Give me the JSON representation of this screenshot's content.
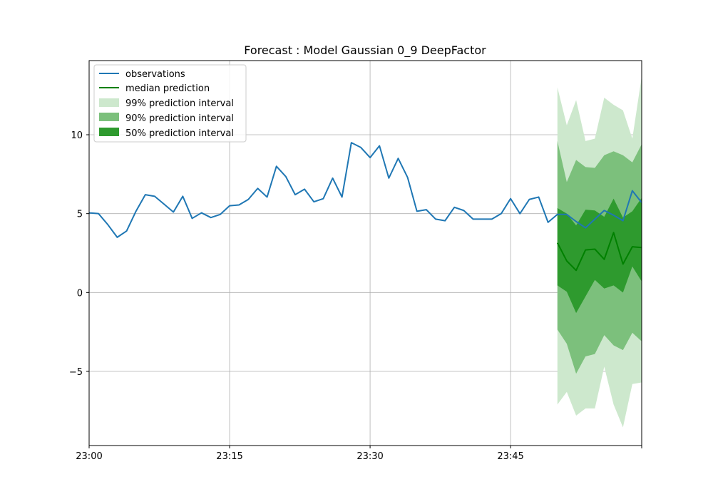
{
  "chart_data": {
    "type": "line",
    "title": "Forecast : Model Gaussian 0_9 DeepFactor",
    "xlabel": "",
    "ylabel": "",
    "x_unit": "minute",
    "x_start": "23:00",
    "x_end": "23:59",
    "xlim": [
      "23:00",
      "23:59"
    ],
    "ylim": [
      -9.7,
      14.7
    ],
    "x_ticks": [
      "23:00",
      "23:15",
      "23:30",
      "23:45",
      ""
    ],
    "y_ticks": [
      {
        "value": -5,
        "label": "−5"
      },
      {
        "value": 0,
        "label": "0"
      },
      {
        "value": 5,
        "label": "5"
      },
      {
        "value": 10,
        "label": "10"
      }
    ],
    "grid": true,
    "legend_position": "upper-left",
    "colors": {
      "observations": "#1f77b4",
      "median": "#008000",
      "band99": "#cde8cd",
      "band90": "#7cc07c",
      "band50": "#2e9a2e"
    },
    "observations": {
      "name": "observations",
      "x": [
        "23:00",
        "23:01",
        "23:02",
        "23:03",
        "23:04",
        "23:05",
        "23:06",
        "23:07",
        "23:08",
        "23:09",
        "23:10",
        "23:11",
        "23:12",
        "23:13",
        "23:14",
        "23:15",
        "23:16",
        "23:17",
        "23:18",
        "23:19",
        "23:20",
        "23:21",
        "23:22",
        "23:23",
        "23:24",
        "23:25",
        "23:26",
        "23:27",
        "23:28",
        "23:29",
        "23:30",
        "23:31",
        "23:32",
        "23:33",
        "23:34",
        "23:35",
        "23:36",
        "23:37",
        "23:38",
        "23:39",
        "23:40",
        "23:41",
        "23:42",
        "23:43",
        "23:44",
        "23:45",
        "23:46",
        "23:47",
        "23:48",
        "23:49",
        "23:50",
        "23:51",
        "23:52",
        "23:53",
        "23:54",
        "23:55",
        "23:56",
        "23:57",
        "23:58",
        "23:59"
      ],
      "values": [
        5.05,
        5.0,
        4.3,
        3.5,
        3.9,
        5.15,
        6.2,
        6.1,
        5.6,
        5.1,
        6.1,
        4.7,
        5.05,
        4.75,
        4.95,
        5.5,
        5.55,
        5.9,
        6.6,
        6.05,
        8.0,
        7.35,
        6.2,
        6.55,
        5.75,
        5.95,
        7.25,
        6.05,
        9.5,
        9.2,
        8.55,
        9.3,
        7.25,
        8.5,
        7.3,
        5.15,
        5.25,
        4.65,
        4.55,
        5.4,
        5.2,
        4.65,
        4.65,
        4.65,
        5.0,
        5.95,
        5.0,
        5.9,
        6.05,
        4.45,
        4.95,
        4.95,
        4.5,
        4.1,
        4.65,
        5.2,
        4.9,
        4.55,
        6.45,
        5.7
      ]
    },
    "forecast": {
      "x": [
        "23:50",
        "23:51",
        "23:52",
        "23:53",
        "23:54",
        "23:55",
        "23:56",
        "23:57",
        "23:58",
        "23:59"
      ],
      "median": {
        "name": "median prediction",
        "values": [
          3.15,
          2.0,
          1.4,
          2.7,
          2.75,
          2.1,
          3.8,
          1.8,
          2.9,
          2.85
        ]
      },
      "intervals": [
        {
          "name": "99% prediction interval",
          "lower": [
            -7.1,
            -6.3,
            -7.8,
            -7.35,
            -7.35,
            -4.7,
            -7.1,
            -8.55,
            -5.8,
            -5.7
          ],
          "upper": [
            13.0,
            10.6,
            12.2,
            9.6,
            9.75,
            12.35,
            11.9,
            11.55,
            9.75,
            13.7
          ]
        },
        {
          "name": "90% prediction interval",
          "lower": [
            -2.35,
            -3.25,
            -5.15,
            -4.05,
            -3.9,
            -2.7,
            -3.35,
            -3.65,
            -2.55,
            -3.1
          ],
          "upper": [
            9.6,
            7.0,
            8.4,
            7.95,
            7.9,
            8.7,
            8.95,
            8.7,
            8.25,
            9.4
          ]
        },
        {
          "name": "50% prediction interval",
          "lower": [
            0.45,
            0.05,
            -1.3,
            -0.25,
            0.8,
            0.25,
            0.45,
            0.0,
            1.65,
            0.7
          ],
          "upper": [
            5.35,
            5.0,
            4.25,
            5.25,
            5.2,
            4.8,
            5.95,
            4.75,
            5.15,
            6.0
          ]
        }
      ]
    }
  }
}
